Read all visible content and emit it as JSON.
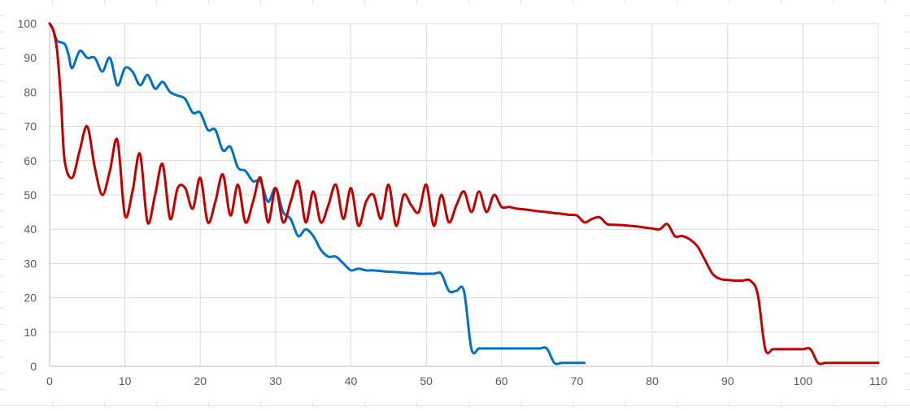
{
  "colors": {
    "background": "#ffffff",
    "sheet_gridline": "#e3e3e3",
    "chart_gridline": "#d9d9d9",
    "axis_line": "#bfbfbf",
    "tick_label": "#595959"
  },
  "chart_data": {
    "type": "line",
    "title": "",
    "xlabel": "",
    "ylabel": "",
    "xlim": [
      0,
      110
    ],
    "ylim": [
      0,
      100
    ],
    "x_ticks": [
      0,
      10,
      20,
      30,
      40,
      50,
      60,
      70,
      80,
      90,
      100,
      110
    ],
    "y_ticks": [
      0,
      10,
      20,
      30,
      40,
      50,
      60,
      70,
      80,
      90,
      100
    ],
    "grid": true,
    "legend": "none",
    "series": [
      {
        "color": "#0070c0",
        "x": [
          0,
          0.5,
          1,
          2,
          2.5,
          3,
          4,
          5,
          6,
          7,
          8,
          9,
          10,
          11,
          12,
          13,
          14,
          15,
          16,
          17,
          18,
          19,
          20,
          21,
          22,
          23,
          24,
          25,
          26,
          27,
          28,
          29,
          30,
          31,
          32,
          33,
          34,
          35,
          36,
          37,
          38,
          39,
          40,
          41,
          42,
          43,
          44,
          45,
          46,
          47,
          48,
          49,
          50,
          51,
          52,
          53,
          54,
          55,
          56,
          57,
          58,
          59,
          60,
          61,
          62,
          63,
          64,
          65,
          66,
          67,
          68,
          69,
          70,
          71
        ],
        "y": [
          100,
          98,
          95,
          94,
          91,
          87,
          92,
          90,
          90,
          86,
          90,
          82,
          87,
          86,
          82,
          85,
          81,
          83,
          80,
          79,
          78,
          74,
          74,
          69,
          69,
          63,
          64,
          58,
          57,
          54,
          54,
          48,
          52,
          45,
          43,
          38,
          40,
          38,
          34,
          32,
          32,
          30,
          28,
          28.5,
          28,
          28,
          27.8,
          27.6,
          27.5,
          27.3,
          27.2,
          27,
          27,
          27,
          27,
          22,
          22,
          22,
          5,
          5.2,
          5.2,
          5.2,
          5.2,
          5.2,
          5.2,
          5.2,
          5.2,
          5.2,
          5.2,
          1,
          1,
          1,
          1,
          1
        ]
      },
      {
        "color": "#c00000",
        "x": [
          0,
          0.5,
          1,
          1.5,
          2,
          3,
          4,
          5,
          6,
          7,
          8,
          9,
          10,
          11,
          12,
          13,
          14,
          15,
          16,
          17,
          18,
          19,
          20,
          21,
          22,
          23,
          24,
          25,
          26,
          27,
          28,
          29,
          30,
          31,
          32,
          33,
          34,
          35,
          36,
          37,
          38,
          39,
          40,
          41,
          42,
          43,
          44,
          45,
          46,
          47,
          48,
          49,
          50,
          51,
          52,
          53,
          54,
          55,
          56,
          57,
          58,
          59,
          60,
          61,
          62,
          63,
          64,
          65,
          66,
          67,
          68,
          69,
          70,
          71,
          72,
          73,
          74,
          75,
          76,
          77,
          78,
          79,
          80,
          81,
          82,
          83,
          84,
          85,
          86,
          87,
          88,
          89,
          90,
          91,
          92,
          93,
          94,
          95,
          96,
          97,
          98,
          99,
          100,
          101,
          102,
          103,
          104,
          105,
          106,
          107,
          108,
          109,
          110
        ],
        "y": [
          100,
          98,
          92,
          78,
          60,
          55,
          63,
          70,
          58,
          50,
          57,
          66,
          44,
          51,
          62,
          42,
          50,
          59,
          43,
          52,
          52,
          46,
          55,
          42,
          48,
          56,
          44,
          53,
          42,
          48,
          55,
          42,
          52,
          42,
          48,
          54,
          42,
          51,
          42,
          47,
          53,
          43,
          52,
          41,
          48,
          50,
          43,
          53,
          41,
          50,
          47,
          45,
          53,
          41,
          50,
          42,
          47,
          51,
          45,
          51,
          45,
          50,
          46.5,
          46.5,
          46,
          45.8,
          45.5,
          45.2,
          45,
          44.7,
          44.5,
          44.2,
          44,
          42,
          43,
          43.5,
          41.5,
          41.3,
          41.2,
          41,
          40.8,
          40.5,
          40.2,
          40,
          41.5,
          38,
          38,
          37,
          35,
          31,
          27,
          25.5,
          25.2,
          25,
          25,
          25,
          21,
          5,
          5,
          5,
          5,
          5,
          5,
          5,
          1,
          1,
          1,
          1,
          1,
          1,
          1,
          1,
          1
        ]
      }
    ]
  }
}
